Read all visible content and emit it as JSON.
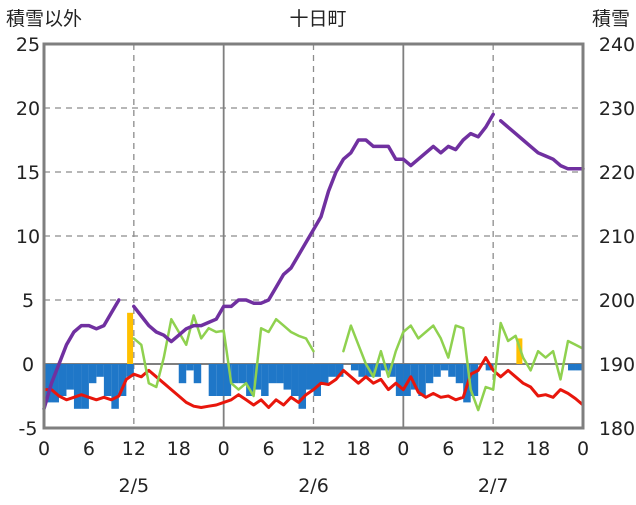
{
  "header": {
    "left_axis_title": "積雪以外",
    "station": "十日町",
    "right_axis_title": "積雪"
  },
  "chart_data": {
    "type": "line",
    "title": "十日町",
    "ylabel_left": "積雪以外",
    "ylabel_right": "積雪",
    "ylim_left": [
      -5,
      25
    ],
    "ylim_right": [
      180,
      240
    ],
    "yticks_left": [
      25,
      20,
      15,
      10,
      5,
      0,
      -5
    ],
    "yticks_right": [
      240,
      230,
      220,
      210,
      200,
      190,
      180
    ],
    "x_range_hours": [
      0,
      72
    ],
    "x_tick_labels": [
      "0",
      "6",
      "12",
      "18",
      "0",
      "6",
      "12",
      "18",
      "0",
      "6",
      "12",
      "18",
      "0"
    ],
    "date_labels": [
      {
        "hour": 12,
        "text": "2/5"
      },
      {
        "hour": 36,
        "text": "2/6"
      },
      {
        "hour": 60,
        "text": "2/7"
      }
    ],
    "grid": "solid vertical at day boundaries, dashed vertical at noon, dashed horizontal at y ticks",
    "series": [
      {
        "color": "#1f77c8",
        "kind": "bar",
        "axis": "left",
        "x": [
          0,
          1,
          2,
          3,
          4,
          5,
          6,
          7,
          8,
          9,
          10,
          11,
          12,
          13,
          14,
          15,
          16,
          17,
          18,
          19,
          20,
          21,
          22,
          23,
          24,
          25,
          26,
          27,
          28,
          29,
          30,
          31,
          32,
          33,
          34,
          35,
          36,
          37,
          38,
          39,
          40,
          41,
          42,
          43,
          44,
          45,
          46,
          47,
          48,
          49,
          50,
          51,
          52,
          53,
          54,
          55,
          56,
          57,
          58,
          59,
          60,
          61,
          62,
          63,
          64,
          65,
          66,
          67,
          68,
          69,
          70,
          71
        ],
        "values": [
          -3,
          -3,
          -2.5,
          -2,
          -3.5,
          -3.5,
          -1.5,
          -1,
          -2.5,
          -3.5,
          -2.5,
          -1,
          0,
          0,
          0,
          0,
          0,
          0,
          -1.5,
          -0.5,
          -1.5,
          0,
          -2.5,
          -2.5,
          -2.5,
          -1.5,
          -1.5,
          -2.5,
          -2,
          -2.5,
          -1.5,
          -1.5,
          -2,
          -2.5,
          -3.5,
          -2,
          -2.5,
          -1.5,
          -1,
          -1,
          0,
          -0.5,
          -1,
          -1,
          -1,
          -0.5,
          -1,
          -2.5,
          -2.5,
          -2,
          -2.5,
          -1.5,
          -1,
          -0.5,
          -1,
          -1.5,
          -3,
          -2.5,
          0,
          -0.5,
          0,
          0,
          0,
          0,
          0,
          0,
          0,
          0,
          0,
          0,
          -0.5,
          -0.5
        ]
      },
      {
        "color": "#ffc000",
        "kind": "bar",
        "axis": "left",
        "x": [
          11,
          63
        ],
        "values": [
          4,
          2
        ]
      },
      {
        "color": "#e8160c",
        "axis": "left",
        "x": [
          0,
          1,
          2,
          3,
          4,
          5,
          6,
          7,
          8,
          9,
          10,
          11,
          12,
          13,
          14,
          15,
          16,
          17,
          18,
          19,
          20,
          21,
          22,
          23,
          24,
          25,
          26,
          27,
          28,
          29,
          30,
          31,
          32,
          33,
          34,
          35,
          36,
          37,
          38,
          39,
          40,
          41,
          42,
          43,
          44,
          45,
          46,
          47,
          48,
          49,
          50,
          51,
          52,
          53,
          54,
          55,
          56,
          57,
          58,
          59,
          60,
          61,
          62,
          63,
          64,
          65,
          66,
          67,
          68,
          69,
          70,
          71,
          72
        ],
        "values": [
          -2,
          -2,
          -2.5,
          -2.8,
          -2.6,
          -2.4,
          -2.6,
          -2.8,
          -2.6,
          -2.8,
          -2.5,
          -1.2,
          -0.8,
          -1,
          -0.5,
          -1,
          -1.5,
          -2,
          -2.5,
          -3,
          -3.3,
          -3.4,
          -3.3,
          -3.2,
          -3,
          -2.8,
          -2.4,
          -2.8,
          -3.2,
          -2.8,
          -3.4,
          -2.8,
          -3.2,
          -2.6,
          -3,
          -2.4,
          -2,
          -1.5,
          -1.6,
          -1.2,
          -0.5,
          -1,
          -1.5,
          -1,
          -1.5,
          -1.2,
          -2,
          -1.5,
          -2,
          -1,
          -2.2,
          -2.6,
          -2.3,
          -2.6,
          -2.5,
          -2.8,
          -2.6,
          -0.8,
          -0.5,
          0.5,
          -0.5,
          -1,
          -0.5,
          -1,
          -1.5,
          -1.8,
          -2.5,
          -2.4,
          -2.6,
          -2,
          -2.3,
          -2.7,
          -3.2
        ]
      },
      {
        "color": "#8fd14f",
        "axis": "left",
        "x": [
          12,
          13,
          14,
          15,
          16,
          17,
          18,
          19,
          20,
          21,
          22,
          23,
          24,
          25,
          26,
          27,
          28,
          29,
          30,
          31,
          32,
          33,
          34,
          35,
          36,
          null,
          40,
          41,
          42,
          43,
          44,
          45,
          46,
          47,
          48,
          49,
          50,
          51,
          52,
          53,
          54,
          55,
          56,
          57,
          58,
          59,
          60,
          61,
          62,
          63,
          64,
          65,
          66,
          67,
          68,
          69,
          70,
          71,
          72
        ],
        "values": [
          2,
          1.5,
          -1.5,
          -1.8,
          0.5,
          3.5,
          2.5,
          1.5,
          3.8,
          2,
          2.8,
          2.5,
          2.6,
          -1.5,
          -2,
          -1.5,
          -2.5,
          2.8,
          2.5,
          3.5,
          3,
          2.5,
          2.2,
          2,
          1,
          null,
          1,
          3,
          1.5,
          0,
          -1,
          1,
          -1,
          1,
          2.5,
          3,
          2,
          2.5,
          3,
          2,
          0.5,
          3,
          2.8,
          -2,
          -3.6,
          -1.8,
          -2,
          3.2,
          1.8,
          2.2,
          0.5,
          -0.5,
          1,
          0.5,
          1,
          -1.2,
          1.8,
          1.5,
          1.2
        ]
      },
      {
        "color": "#7030a0",
        "axis": "right",
        "x": [
          0,
          1,
          2,
          3,
          4,
          5,
          6,
          7,
          8,
          9,
          10,
          null,
          12,
          13,
          14,
          15,
          16,
          17,
          18,
          19,
          20,
          21,
          22,
          23,
          24,
          25,
          26,
          27,
          28,
          29,
          30,
          31,
          32,
          33,
          34,
          35,
          36,
          37,
          38,
          39,
          40,
          41,
          42,
          43,
          44,
          45,
          46,
          47,
          48,
          49,
          50,
          51,
          52,
          53,
          54,
          55,
          56,
          57,
          58,
          59,
          60,
          null,
          61,
          62,
          63,
          64,
          65,
          66,
          67,
          68,
          69,
          70,
          71,
          72
        ],
        "values": [
          183,
          187,
          190,
          193,
          195,
          196,
          196,
          195.5,
          196,
          198,
          200,
          null,
          199,
          197.5,
          196,
          195,
          194.5,
          193.5,
          194.5,
          195.5,
          196,
          196,
          196.5,
          197,
          199,
          199,
          200,
          200,
          199.5,
          199.5,
          200,
          202,
          204,
          205,
          207,
          209,
          211,
          213,
          217,
          220,
          222,
          223,
          225,
          225,
          224,
          224,
          224,
          222,
          222,
          221,
          222,
          223,
          224,
          223,
          224,
          223.5,
          225,
          226,
          225.5,
          227,
          229,
          null,
          228,
          227,
          226,
          225,
          224,
          223,
          222.5,
          222,
          221,
          220.5,
          220.5,
          220.5
        ]
      }
    ]
  }
}
